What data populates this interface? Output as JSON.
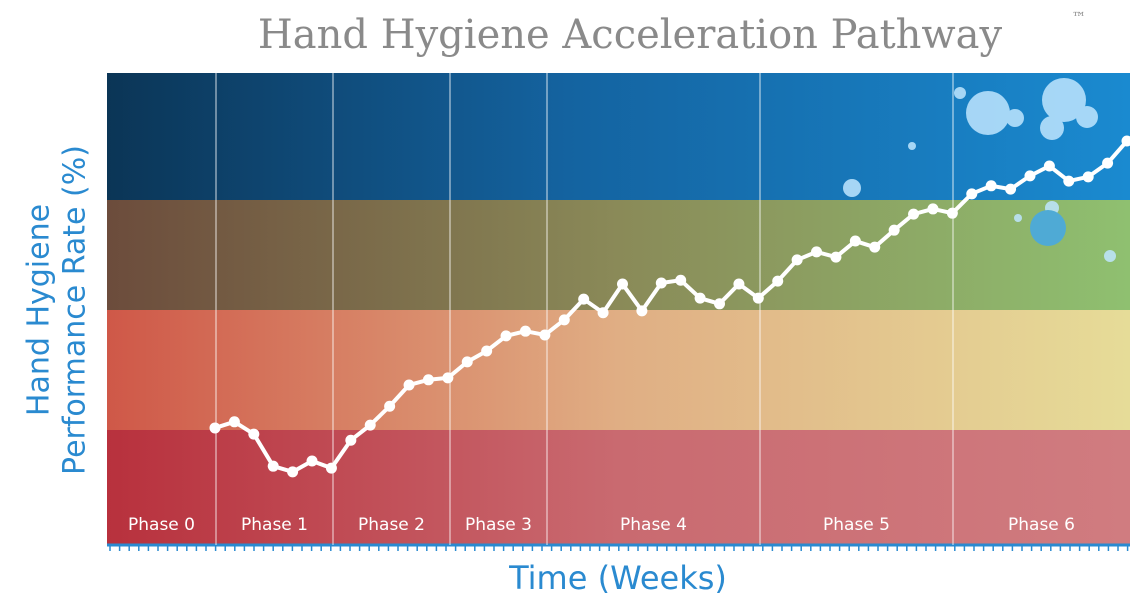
{
  "chart_data": {
    "type": "line",
    "title": "Hand Hygiene Acceleration Pathway",
    "title_mark": "™",
    "y_label": [
      "Hand Hygiene",
      "Performance Rate (%)"
    ],
    "x_label": "Time (Weeks)",
    "phases": [
      "Phase 0",
      "Phase 1",
      "Phase 2",
      "Phase 3",
      "Phase 4",
      "Phase 5",
      "Phase 6"
    ],
    "ylim": [
      0,
      100
    ],
    "color": "#ffffff",
    "values": [
      24.8,
      26.1,
      23.5,
      16.7,
      15.5,
      17.8,
      16.3,
      22.2,
      25.4,
      29.4,
      33.9,
      35.0,
      35.4,
      38.8,
      41.1,
      44.3,
      45.3,
      44.5,
      47.7,
      52.1,
      49.2,
      55.3,
      49.6,
      55.5,
      56.1,
      52.3,
      51.1,
      55.3,
      52.3,
      55.9,
      60.4,
      62.1,
      61.0,
      64.4,
      63.1,
      66.7,
      70.1,
      71.2,
      70.3,
      74.4,
      76.1,
      75.4,
      78.2,
      80.3,
      77.1,
      78.0,
      80.9,
      85.6
    ]
  }
}
